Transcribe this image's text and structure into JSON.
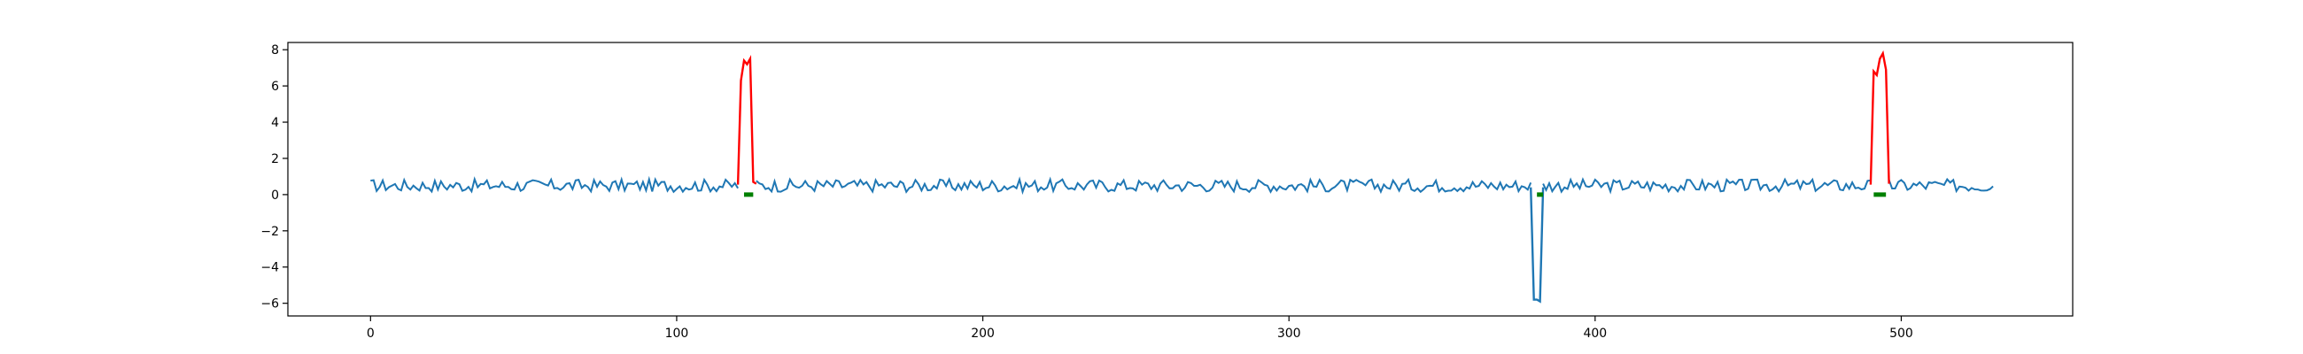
{
  "chart_data": {
    "type": "line",
    "title": "",
    "xlabel": "",
    "ylabel": "",
    "xlim": [
      -27,
      556
    ],
    "ylim": [
      -6.7,
      8.4
    ],
    "x_ticks": [
      0,
      100,
      200,
      300,
      400,
      500
    ],
    "y_ticks": [
      -6,
      -4,
      -2,
      0,
      2,
      4,
      6,
      8
    ],
    "grid": false,
    "legend": "none",
    "colors": {
      "signal": "#1f77b4",
      "positive_anomaly": "#ff0000",
      "negative_anomaly": "#1f77b4",
      "marker": "#008000"
    },
    "series": [
      {
        "role": "signal",
        "x_start": 0,
        "x_end": 530,
        "baseline_mean": 0.5,
        "baseline_amplitude": 0.35
      },
      {
        "role": "positive_anomaly",
        "points": [
          [
            120,
            0.55
          ],
          [
            121,
            6.3
          ],
          [
            122,
            7.4
          ],
          [
            123,
            7.2
          ],
          [
            124,
            7.5
          ],
          [
            125,
            0.7
          ],
          [
            126,
            0.6
          ]
        ]
      },
      {
        "role": "negative_anomaly",
        "points": [
          [
            379,
            0.4
          ],
          [
            380,
            -5.8
          ],
          [
            381,
            -5.8
          ],
          [
            382,
            -5.9
          ],
          [
            383,
            0.4
          ]
        ]
      },
      {
        "role": "positive_anomaly",
        "points": [
          [
            490,
            0.55
          ],
          [
            491,
            6.8
          ],
          [
            492,
            6.6
          ],
          [
            493,
            7.5
          ],
          [
            494,
            7.8
          ],
          [
            495,
            6.9
          ],
          [
            496,
            0.6
          ]
        ]
      }
    ],
    "markers": [
      {
        "x_start": 122,
        "x_end": 125,
        "y": 0
      },
      {
        "x_start": 381,
        "x_end": 383,
        "y": 0
      },
      {
        "x_start": 491,
        "x_end": 495,
        "y": 0
      }
    ]
  }
}
